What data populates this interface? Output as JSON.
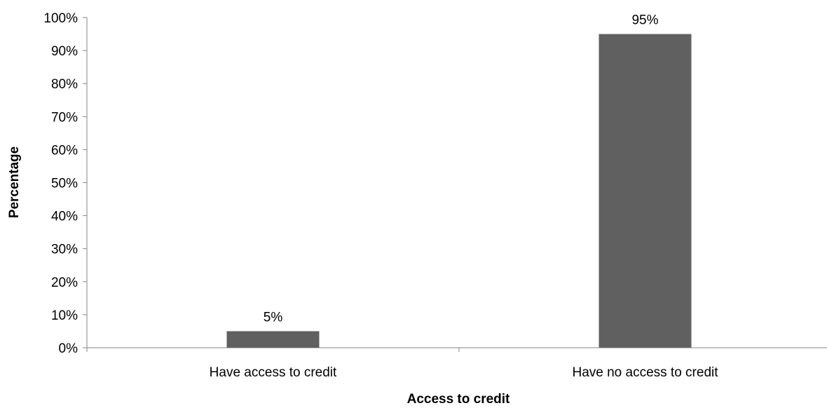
{
  "chart_data": {
    "type": "bar",
    "categories": [
      "Have access to credit",
      "Have no access to credit"
    ],
    "values": [
      5,
      95
    ],
    "data_labels": [
      "5%",
      "95%"
    ],
    "title": "",
    "xlabel": "Access to credit",
    "ylabel": "Percentage",
    "ylim": [
      0,
      100
    ],
    "yticks": [
      0,
      10,
      20,
      30,
      40,
      50,
      60,
      70,
      80,
      90,
      100
    ],
    "ytick_labels": [
      "0%",
      "10%",
      "20%",
      "30%",
      "40%",
      "50%",
      "60%",
      "70%",
      "80%",
      "90%",
      "100%"
    ],
    "grid": false,
    "legend": "none",
    "bar_color": "#606060"
  }
}
